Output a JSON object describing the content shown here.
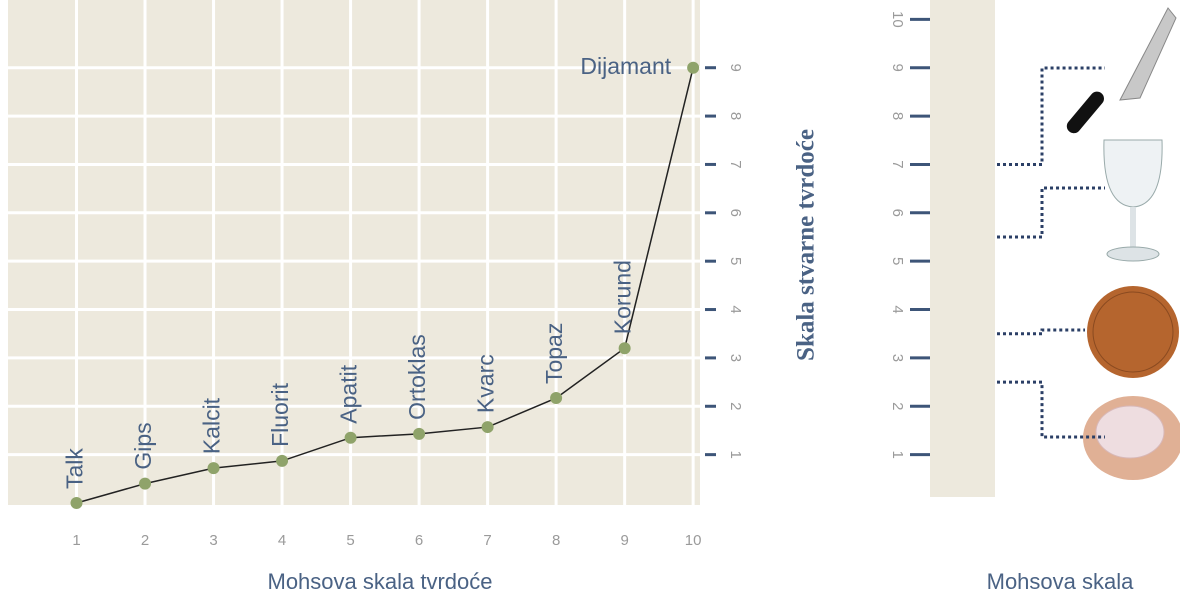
{
  "chart_data": [
    {
      "type": "line",
      "color": "#222222",
      "marker_color": "#8fa36a",
      "x": [
        1,
        2,
        3,
        4,
        5,
        6,
        7,
        8,
        9,
        10
      ],
      "point_labels": [
        "Talk",
        "Gips",
        "Kalcit",
        "Fluorit",
        "Apatit",
        "Ortoklas",
        "Kvarc",
        "Topaz",
        "Korund",
        "Dijamant"
      ],
      "values": [
        0,
        0.4,
        0.72,
        0.87,
        1.35,
        1.43,
        1.57,
        2.17,
        3.2,
        9
      ],
      "xlim": [
        0,
        10.1
      ],
      "ylim": [
        0,
        10.4
      ],
      "xticks": [
        1,
        2,
        3,
        4,
        5,
        6,
        7,
        8,
        9,
        10
      ],
      "yticks": [
        1,
        2,
        3,
        4,
        5,
        6,
        7,
        8,
        9
      ],
      "xlabel": "Mohsova skala tvrdoće",
      "ylabel": "Skala stvarne tvrdoće",
      "grid": true
    },
    {
      "type": "scale",
      "ylim": [
        0,
        10.4
      ],
      "yticks": [
        1,
        2,
        3,
        4,
        5,
        6,
        7,
        8,
        9,
        10
      ],
      "markers": [
        7,
        5.5,
        3.5,
        2.5
      ],
      "xlabel": "Mohsova skala"
    }
  ]
}
